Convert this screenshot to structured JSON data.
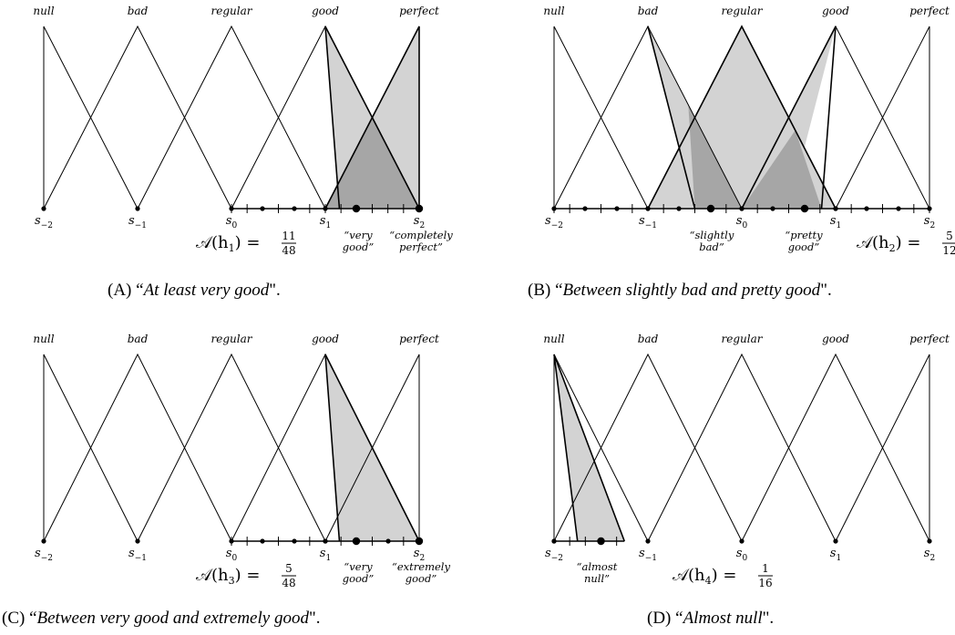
{
  "terms": [
    "null",
    "bad",
    "regular",
    "good",
    "perfect"
  ],
  "axis_points": [
    {
      "base": "s",
      "sub": "−2"
    },
    {
      "base": "s",
      "sub": "−1"
    },
    {
      "base": "s",
      "sub": "0"
    },
    {
      "base": "s",
      "sub": "1"
    },
    {
      "base": "s",
      "sub": "2"
    }
  ],
  "panels": [
    {
      "id": "a",
      "caption_label": "(A)",
      "caption_open": "“",
      "caption_text": "At least very good",
      "caption_close": "\".",
      "measure_lhs": "𝒜(h",
      "measure_sub": "1",
      "measure_rhs": ") = ",
      "measure_num": "11",
      "measure_den": "48",
      "annotations": [
        {
          "lines": [
            "“very",
            "good”"
          ]
        },
        {
          "lines": [
            "“completely",
            "perfect”"
          ]
        }
      ],
      "fill_regions": [
        {
          "shade": "light",
          "pts": [
            [
              3.0,
              1
            ],
            [
              3.15,
              0
            ],
            [
              4.0,
              0
            ],
            [
              4.0,
              1
            ],
            [
              3.5,
              0.5
            ]
          ]
        },
        {
          "shade": "dark",
          "pts": [
            [
              3.0,
              0
            ],
            [
              4.0,
              0
            ],
            [
              3.5,
              0.5
            ]
          ]
        }
      ],
      "fill_paths": [
        [
          [
            3.15,
            0
          ],
          [
            3.0,
            1
          ],
          [
            4.0,
            0
          ]
        ],
        [
          [
            3.0,
            0
          ],
          [
            4.0,
            1
          ],
          [
            4.0,
            0
          ]
        ]
      ],
      "ticks": {
        "start": 2,
        "end": 4,
        "dots": [
          2.33,
          2.67
        ],
        "bigdots": [
          3.33,
          4.0
        ]
      }
    },
    {
      "id": "b",
      "caption_label": "(B)",
      "caption_open": "“",
      "caption_text": "Between slightly bad and pretty good",
      "caption_close": "\".",
      "measure_lhs": "𝒜(h",
      "measure_sub": "2",
      "measure_rhs": ") = ",
      "measure_num": "5",
      "measure_den": "12",
      "annotations": [
        {
          "lines": [
            "“slightly",
            "bad”"
          ]
        },
        {
          "lines": [
            "“pretty",
            "good”"
          ]
        }
      ],
      "fill_regions": [
        {
          "shade": "light",
          "pts": [
            [
              1.0,
              0
            ],
            [
              2.0,
              1
            ],
            [
              3.0,
              0
            ]
          ]
        },
        {
          "shade": "light",
          "pts": [
            [
              1.0,
              1
            ],
            [
              1.5,
              0
            ],
            [
              2.5,
              0
            ],
            [
              3.0,
              1
            ],
            [
              2.0,
              0
            ]
          ]
        },
        {
          "shade": "dark",
          "pts": [
            [
              1.5,
              0
            ],
            [
              2.0,
              0
            ],
            [
              1.43,
              0.57
            ]
          ]
        },
        {
          "shade": "dark",
          "pts": [
            [
              2.0,
              0
            ],
            [
              2.85,
              0
            ],
            [
              2.57,
              0.43
            ]
          ]
        }
      ],
      "fill_paths": [
        [
          [
            1.0,
            0
          ],
          [
            2.0,
            1
          ],
          [
            3.0,
            0
          ]
        ],
        [
          [
            1.0,
            1
          ],
          [
            1.5,
            0
          ]
        ],
        [
          [
            2.85,
            0
          ],
          [
            3.0,
            1
          ],
          [
            2.0,
            0
          ]
        ]
      ],
      "ticks": {
        "start": 0,
        "end": 4,
        "dots": [
          0.33,
          0.67,
          1.0,
          1.33,
          2.0,
          2.33,
          3.0,
          3.33,
          3.67
        ],
        "bigdots": [
          1.67,
          2.67
        ]
      }
    },
    {
      "id": "c",
      "caption_label": "(C)",
      "caption_open": "“",
      "caption_text": "Between very good and extremely good",
      "caption_close": "\".",
      "measure_lhs": "𝒜(h",
      "measure_sub": "3",
      "measure_rhs": ") = ",
      "measure_num": "5",
      "measure_den": "48",
      "annotations": [
        {
          "lines": [
            "“very",
            "good”"
          ]
        },
        {
          "lines": [
            "“extremely",
            "good”"
          ]
        }
      ],
      "fill_regions": [
        {
          "shade": "light",
          "pts": [
            [
              3.0,
              1
            ],
            [
              3.15,
              0
            ],
            [
              4.0,
              0
            ]
          ]
        }
      ],
      "fill_paths": [
        [
          [
            3.15,
            0
          ],
          [
            3.0,
            1
          ],
          [
            4.0,
            0
          ]
        ]
      ],
      "ticks": {
        "start": 2,
        "end": 4,
        "dots": [
          2.33,
          2.67,
          3.0,
          3.67
        ],
        "bigdots": [
          3.33,
          4.0
        ]
      }
    },
    {
      "id": "d",
      "caption_label": "(D)",
      "caption_open": "“",
      "caption_text": "Almost null",
      "caption_close": "\".",
      "measure_lhs": "𝒜(h",
      "measure_sub": "4",
      "measure_rhs": ") = ",
      "measure_num": "1",
      "measure_den": "16",
      "annotations": [
        {
          "lines": [
            "“almost",
            "null”"
          ]
        }
      ],
      "fill_regions": [
        {
          "shade": "light",
          "pts": [
            [
              0.0,
              1
            ],
            [
              0.25,
              0
            ],
            [
              0.75,
              0
            ]
          ]
        }
      ],
      "fill_paths": [
        [
          [
            0.25,
            0
          ],
          [
            0.0,
            1
          ],
          [
            0.75,
            0
          ]
        ]
      ],
      "ticks": {
        "start": 0,
        "end": 0.75,
        "dots": [
          0.0
        ],
        "bigdots": [
          0.5
        ]
      }
    }
  ],
  "colors": {
    "line": "#000000",
    "light": "#d3d3d3",
    "dark": "#a6a6a6"
  }
}
